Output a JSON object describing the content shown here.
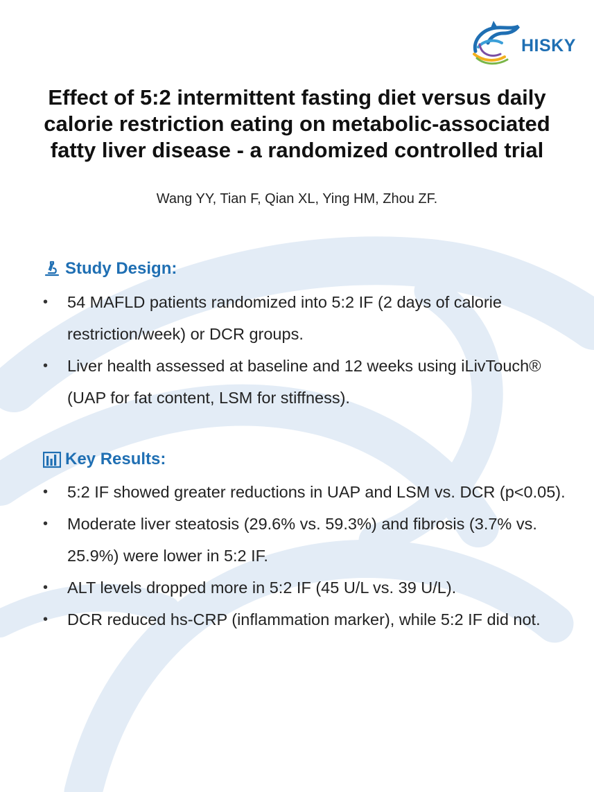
{
  "logo": {
    "text": "HISKY"
  },
  "title": "Effect of 5:2 intermittent fasting diet versus daily calorie restriction eating on metabolic-associated fatty liver disease - a randomized controlled trial",
  "authors": "Wang YY, Tian F, Qian XL, Ying HM, Zhou ZF.",
  "colors": {
    "accent": "#1f6fb3",
    "watermark": "#dfe9f4",
    "text": "#222222"
  },
  "study_design": {
    "heading": "Study Design:",
    "icon": "microscope-icon",
    "bullets": [
      "54 MAFLD patients randomized into 5:2 IF (2 days of calorie restriction/week) or DCR groups.",
      "Liver health assessed at baseline and 12 weeks using iLivTouch® (UAP for fat content, LSM for stiffness)."
    ]
  },
  "key_results": {
    "heading": "Key Results:",
    "icon": "bar-chart-icon",
    "bullets": [
      "5:2 IF showed greater reductions in UAP and LSM vs. DCR (p<0.05).",
      "Moderate liver steatosis (29.6% vs. 59.3%) and fibrosis (3.7% vs. 25.9%) were lower in 5:2 IF.",
      "ALT levels dropped more in 5:2 IF (45 U/L vs. 39 U/L).",
      "DCR reduced hs-CRP (inflammation marker), while 5:2 IF did not."
    ]
  }
}
